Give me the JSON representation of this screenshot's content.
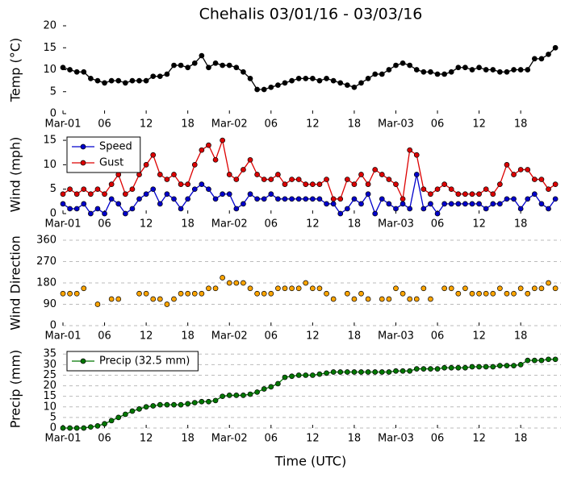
{
  "chart_data": [
    {
      "type": "line",
      "title": "Chehalis 03/01/16 - 03/03/16",
      "ylabel": "Temp (°C)",
      "x": [
        0,
        1,
        2,
        3,
        4,
        5,
        6,
        7,
        8,
        9,
        10,
        11,
        12,
        13,
        14,
        15,
        16,
        17,
        18,
        19,
        20,
        21,
        22,
        23,
        24,
        25,
        26,
        27,
        28,
        29,
        30,
        31,
        32,
        33,
        34,
        35,
        36,
        37,
        38,
        39,
        40,
        41,
        42,
        43,
        44,
        45,
        46,
        47,
        48,
        49,
        50,
        51,
        52,
        53,
        54,
        55,
        56,
        57,
        58,
        59,
        60,
        61,
        62,
        63,
        64,
        65,
        66,
        67,
        68,
        69,
        70,
        71
      ],
      "xlim": [
        0,
        71.8
      ],
      "xticks": [
        {
          "value": 0,
          "label": "Mar-01"
        },
        {
          "value": 6,
          "label": "06"
        },
        {
          "value": 12,
          "label": "12"
        },
        {
          "value": 18,
          "label": "18"
        },
        {
          "value": 24,
          "label": "Mar-02"
        },
        {
          "value": 30,
          "label": "06"
        },
        {
          "value": 36,
          "label": "12"
        },
        {
          "value": 42,
          "label": "18"
        },
        {
          "value": 48,
          "label": "Mar-03"
        },
        {
          "value": 54,
          "label": "06"
        },
        {
          "value": 60,
          "label": "12"
        },
        {
          "value": 66,
          "label": "18"
        }
      ],
      "ylim": [
        0,
        20
      ],
      "yticks": [
        0,
        5,
        10,
        15,
        20
      ],
      "grid": false,
      "series": [
        {
          "color": "#000000",
          "values": [
            10.5,
            10,
            9.5,
            9.5,
            8,
            7.5,
            7,
            7.5,
            7.5,
            7,
            7.5,
            7.5,
            7.5,
            8.5,
            8.5,
            9,
            11,
            11,
            10.5,
            11.5,
            13.2,
            10.5,
            11.5,
            11,
            11,
            10.5,
            9.5,
            8,
            5.5,
            5.5,
            6,
            6.5,
            7,
            7.5,
            8,
            8,
            8,
            7.5,
            8,
            7.5,
            7,
            6.5,
            6,
            7,
            8,
            9,
            9,
            10,
            11,
            11.5,
            11,
            10,
            9.5,
            9.5,
            9,
            9,
            9.5,
            10.5,
            10.5,
            10,
            10.5,
            10,
            10,
            9.5,
            9.5,
            10,
            10,
            10,
            12.5,
            12.5,
            13.5,
            15
          ]
        }
      ]
    },
    {
      "type": "line",
      "ylabel": "Wind (mph)",
      "x": [
        0,
        1,
        2,
        3,
        4,
        5,
        6,
        7,
        8,
        9,
        10,
        11,
        12,
        13,
        14,
        15,
        16,
        17,
        18,
        19,
        20,
        21,
        22,
        23,
        24,
        25,
        26,
        27,
        28,
        29,
        30,
        31,
        32,
        33,
        34,
        35,
        36,
        37,
        38,
        39,
        40,
        41,
        42,
        43,
        44,
        45,
        46,
        47,
        48,
        49,
        50,
        51,
        52,
        53,
        54,
        55,
        56,
        57,
        58,
        59,
        60,
        61,
        62,
        63,
        64,
        65,
        66,
        67,
        68,
        69,
        70,
        71
      ],
      "xlim": [
        0,
        71.8
      ],
      "xticks": [
        {
          "value": 0,
          "label": "Mar-01"
        },
        {
          "value": 6,
          "label": "06"
        },
        {
          "value": 12,
          "label": "12"
        },
        {
          "value": 18,
          "label": "18"
        },
        {
          "value": 24,
          "label": "Mar-02"
        },
        {
          "value": 30,
          "label": "06"
        },
        {
          "value": 36,
          "label": "12"
        },
        {
          "value": 42,
          "label": "18"
        },
        {
          "value": 48,
          "label": "Mar-03"
        },
        {
          "value": 54,
          "label": "06"
        },
        {
          "value": 60,
          "label": "12"
        },
        {
          "value": 66,
          "label": "18"
        }
      ],
      "ylim": [
        0,
        16
      ],
      "yticks": [
        0,
        5,
        10,
        15
      ],
      "grid": false,
      "legend": "upper left",
      "series": [
        {
          "name": "Speed",
          "color": "#0000cc",
          "values": [
            2,
            1,
            1,
            2,
            0,
            1,
            0,
            3,
            2,
            0,
            1,
            3,
            4,
            5,
            2,
            4,
            3,
            1,
            3,
            5,
            6,
            5,
            3,
            4,
            4,
            1,
            2,
            4,
            3,
            3,
            4,
            3,
            3,
            3,
            3,
            3,
            3,
            3,
            2,
            2,
            0,
            1,
            3,
            2,
            4,
            0,
            3,
            2,
            1,
            2,
            1,
            8,
            1,
            2,
            0,
            2,
            2,
            2,
            2,
            2,
            2,
            1,
            2,
            2,
            3,
            3,
            1,
            3,
            4,
            2,
            1,
            3
          ]
        },
        {
          "name": "Gust",
          "color": "#dd0000",
          "values": [
            4,
            5,
            4,
            5,
            4,
            5,
            4,
            6,
            8,
            4,
            5,
            8,
            10,
            12,
            8,
            7,
            8,
            6,
            6,
            10,
            13,
            14,
            11,
            15,
            8,
            7,
            9,
            11,
            8,
            7,
            7,
            8,
            6,
            7,
            7,
            6,
            6,
            6,
            7,
            3,
            3,
            7,
            6,
            8,
            6,
            9,
            8,
            7,
            6,
            3,
            13,
            12,
            5,
            4,
            5,
            6,
            5,
            4,
            4,
            4,
            4,
            5,
            4,
            6,
            10,
            8,
            9,
            9,
            7,
            7,
            5,
            6
          ]
        }
      ]
    },
    {
      "type": "scatter",
      "ylabel": "Wind Direction",
      "x": [
        0,
        1,
        2,
        3,
        4,
        5,
        6,
        7,
        8,
        9,
        10,
        11,
        12,
        13,
        14,
        15,
        16,
        17,
        18,
        19,
        20,
        21,
        22,
        23,
        24,
        25,
        26,
        27,
        28,
        29,
        30,
        31,
        32,
        33,
        34,
        35,
        36,
        37,
        38,
        39,
        40,
        41,
        42,
        43,
        44,
        45,
        46,
        47,
        48,
        49,
        50,
        51,
        52,
        53,
        54,
        55,
        56,
        57,
        58,
        59,
        60,
        61,
        62,
        63,
        64,
        65,
        66,
        67,
        68,
        69,
        70,
        71
      ],
      "xlim": [
        0,
        71.8
      ],
      "xticks": [
        {
          "value": 0,
          "label": "Mar-01"
        },
        {
          "value": 6,
          "label": "06"
        },
        {
          "value": 12,
          "label": "12"
        },
        {
          "value": 18,
          "label": "18"
        },
        {
          "value": 24,
          "label": "Mar-02"
        },
        {
          "value": 30,
          "label": "06"
        },
        {
          "value": 36,
          "label": "12"
        },
        {
          "value": 42,
          "label": "18"
        },
        {
          "value": 48,
          "label": "Mar-03"
        },
        {
          "value": 54,
          "label": "06"
        },
        {
          "value": 60,
          "label": "12"
        },
        {
          "value": 66,
          "label": "18"
        }
      ],
      "ylim": [
        0,
        360
      ],
      "yticks": [
        0,
        90,
        180,
        270,
        360
      ],
      "grid": true,
      "series": [
        {
          "color": "#ffa500",
          "values": [
            135,
            135,
            135,
            157,
            null,
            90,
            null,
            112,
            112,
            null,
            null,
            135,
            135,
            112,
            112,
            90,
            112,
            135,
            135,
            135,
            135,
            157,
            157,
            202,
            180,
            180,
            180,
            157,
            135,
            135,
            135,
            157,
            157,
            157,
            157,
            180,
            157,
            157,
            135,
            112,
            null,
            135,
            112,
            135,
            112,
            null,
            112,
            112,
            157,
            135,
            112,
            112,
            157,
            112,
            null,
            157,
            157,
            135,
            157,
            135,
            135,
            135,
            135,
            157,
            135,
            135,
            157,
            135,
            157,
            157,
            180,
            157
          ]
        }
      ]
    },
    {
      "type": "line",
      "ylabel": "Precip (mm)",
      "xlabel": "Time (UTC)",
      "x": [
        0,
        1,
        2,
        3,
        4,
        5,
        6,
        7,
        8,
        9,
        10,
        11,
        12,
        13,
        14,
        15,
        16,
        17,
        18,
        19,
        20,
        21,
        22,
        23,
        24,
        25,
        26,
        27,
        28,
        29,
        30,
        31,
        32,
        33,
        34,
        35,
        36,
        37,
        38,
        39,
        40,
        41,
        42,
        43,
        44,
        45,
        46,
        47,
        48,
        49,
        50,
        51,
        52,
        53,
        54,
        55,
        56,
        57,
        58,
        59,
        60,
        61,
        62,
        63,
        64,
        65,
        66,
        67,
        68,
        69,
        70,
        71
      ],
      "xlim": [
        0,
        71.8
      ],
      "xticks": [
        {
          "value": 0,
          "label": "Mar-01"
        },
        {
          "value": 6,
          "label": "06"
        },
        {
          "value": 12,
          "label": "12"
        },
        {
          "value": 18,
          "label": "18"
        },
        {
          "value": 24,
          "label": "Mar-02"
        },
        {
          "value": 30,
          "label": "06"
        },
        {
          "value": 36,
          "label": "12"
        },
        {
          "value": 42,
          "label": "18"
        },
        {
          "value": 48,
          "label": "Mar-03"
        },
        {
          "value": 54,
          "label": "06"
        },
        {
          "value": 60,
          "label": "12"
        },
        {
          "value": 66,
          "label": "18"
        }
      ],
      "ylim": [
        0,
        37
      ],
      "yticks": [
        0,
        5,
        10,
        15,
        20,
        25,
        30,
        35
      ],
      "grid": true,
      "legend": "upper left",
      "series": [
        {
          "name": "Precip (32.5 mm)",
          "color": "#007700",
          "values": [
            0,
            0,
            0,
            0,
            0.5,
            1,
            2,
            3.5,
            5,
            6.5,
            8,
            9,
            10,
            10.5,
            11,
            11,
            11,
            11,
            11.5,
            12,
            12.5,
            12.5,
            13,
            15,
            15.5,
            15.5,
            15.5,
            16,
            17,
            18.5,
            19.5,
            21,
            24,
            24.5,
            25,
            25,
            25,
            25.5,
            26,
            26.5,
            26.5,
            26.5,
            26.5,
            26.5,
            26.5,
            26.5,
            26.5,
            26.5,
            27,
            27,
            27,
            28,
            28,
            28,
            28,
            28.5,
            28.5,
            28.5,
            28.5,
            29,
            29,
            29,
            29,
            29.5,
            29.5,
            29.5,
            30,
            32,
            32,
            32,
            32.5,
            32.5
          ]
        }
      ]
    }
  ]
}
